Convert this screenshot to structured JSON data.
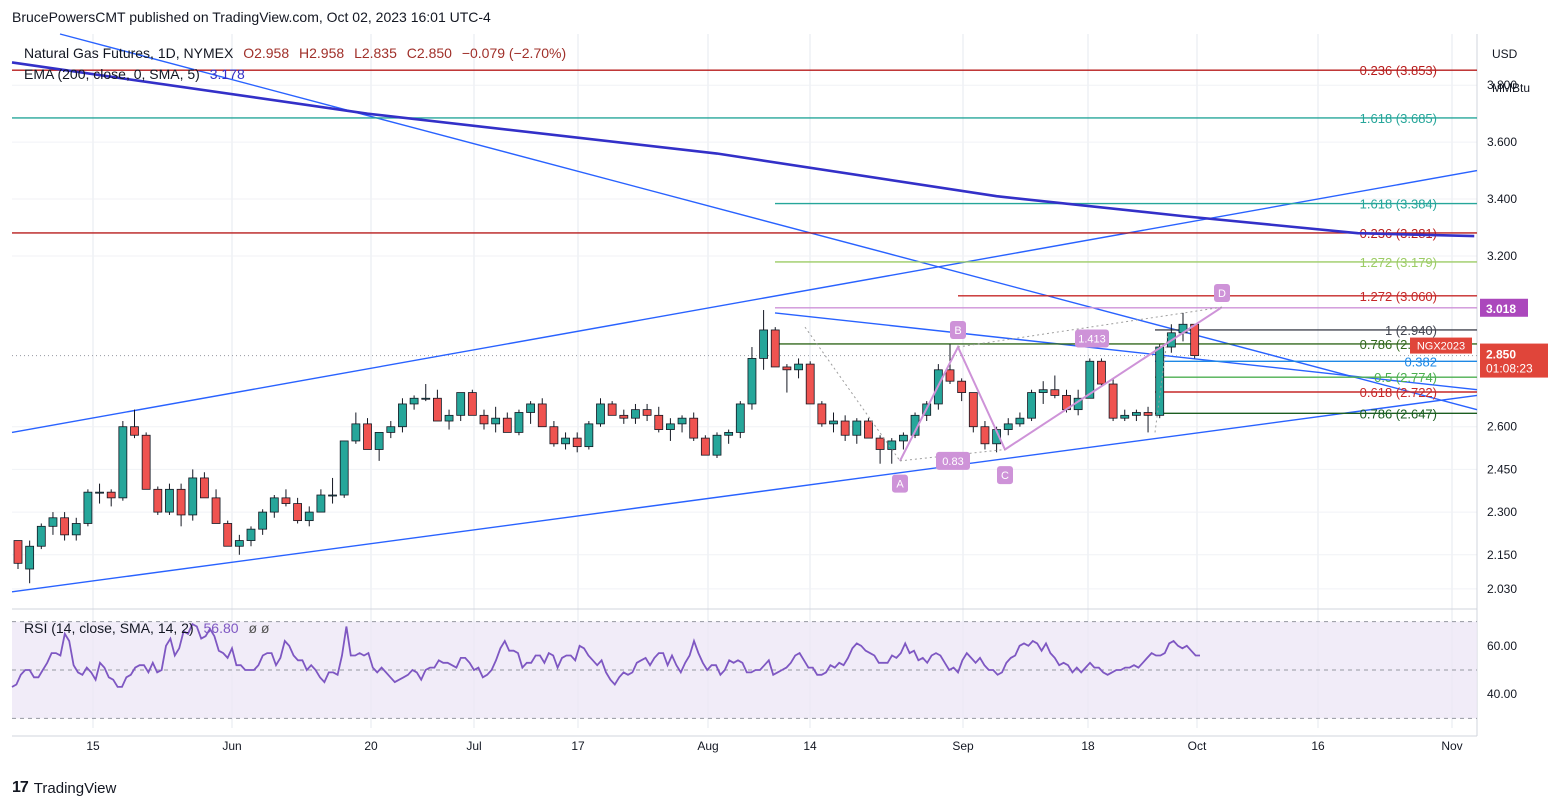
{
  "header": {
    "published_line": "BrucePowersCMT published on TradingView.com, Oct 02, 2023 16:01 UTC-4"
  },
  "legend": {
    "symbol": "Natural Gas Futures, 1D, NYMEX",
    "o": "O2.958",
    "h": "H2.958",
    "l": "L2.835",
    "c": "C2.850",
    "chg": "−0.079 (−2.70%)",
    "ema": "EMA (200, close, 0, SMA, 5)",
    "ema_value": "3.178"
  },
  "axis": {
    "currency": "USD",
    "unit": "MMBtu",
    "price_ticks": [
      "3.800",
      "3.600",
      "3.400",
      "3.200",
      "2.600",
      "2.450",
      "2.300",
      "2.150",
      "2.030"
    ],
    "rsi_ticks": [
      "60.00",
      "40.00"
    ],
    "dates": [
      "15",
      "Jun",
      "20",
      "Jul",
      "17",
      "Aug",
      "14",
      "Sep",
      "18",
      "Oct",
      "16",
      "Nov"
    ]
  },
  "price_labels": {
    "last_price": "2.850",
    "countdown": "01:08:23",
    "marker": "3.018",
    "symbol_tag": "NGX2023"
  },
  "fib_labels": [
    "0.236 (3.853)",
    "1.618 (3.685)",
    "1.618 (3.384)",
    "0.236 (3.281)",
    "1.272 (3.179)",
    "1.272 (3.060)",
    "1 (2.940)",
    "0.786 (2.891)",
    "0.382",
    "0.5 (2.774)",
    "0.618 (2.722)",
    "0.786 (2.647)"
  ],
  "pattern": {
    "points": [
      "A",
      "B",
      "C",
      "D"
    ],
    "ratios": [
      "0.83",
      "1.413"
    ]
  },
  "rsi": {
    "title": "RSI (14, close, SMA, 14, 2)",
    "value": "56.80",
    "extra": "ø  ø"
  },
  "footer": {
    "logo": "17",
    "brand": "TradingView"
  },
  "colors": {
    "up": "#26a69a",
    "down": "#ef5350",
    "ema": "#3330c8",
    "trend": "#2962ff",
    "rsi": "#7e57c2",
    "pattern": "#ce93d8",
    "last_price_bg": "#e0453a",
    "marker_bg": "#ab47bc"
  },
  "chart_data": {
    "type": "candlestick",
    "ylim": [
      1.97,
      3.98
    ],
    "rsi_ylim": [
      26,
      74
    ],
    "x_ticks": [
      "15",
      "Jun",
      "20",
      "Jul",
      "17",
      "Aug",
      "14",
      "Sep",
      "18",
      "Oct",
      "16",
      "Nov"
    ],
    "ohlc": [
      [
        2.2,
        2.2,
        2.1,
        2.12
      ],
      [
        2.1,
        2.2,
        2.05,
        2.18
      ],
      [
        2.18,
        2.26,
        2.17,
        2.25
      ],
      [
        2.25,
        2.3,
        2.22,
        2.28
      ],
      [
        2.28,
        2.3,
        2.2,
        2.22
      ],
      [
        2.22,
        2.28,
        2.2,
        2.26
      ],
      [
        2.26,
        2.38,
        2.25,
        2.37
      ],
      [
        2.37,
        2.4,
        2.33,
        2.37
      ],
      [
        2.37,
        2.38,
        2.32,
        2.35
      ],
      [
        2.35,
        2.62,
        2.34,
        2.6
      ],
      [
        2.6,
        2.66,
        2.56,
        2.57
      ],
      [
        2.57,
        2.58,
        2.38,
        2.38
      ],
      [
        2.38,
        2.39,
        2.29,
        2.3
      ],
      [
        2.3,
        2.4,
        2.29,
        2.38
      ],
      [
        2.38,
        2.4,
        2.25,
        2.29
      ],
      [
        2.29,
        2.45,
        2.27,
        2.42
      ],
      [
        2.42,
        2.44,
        2.36,
        2.35
      ],
      [
        2.35,
        2.38,
        2.28,
        2.26
      ],
      [
        2.26,
        2.27,
        2.18,
        2.18
      ],
      [
        2.18,
        2.22,
        2.15,
        2.2
      ],
      [
        2.2,
        2.25,
        2.18,
        2.24
      ],
      [
        2.24,
        2.31,
        2.22,
        2.3
      ],
      [
        2.3,
        2.36,
        2.28,
        2.35
      ],
      [
        2.35,
        2.38,
        2.32,
        2.33
      ],
      [
        2.33,
        2.35,
        2.26,
        2.27
      ],
      [
        2.27,
        2.32,
        2.25,
        2.3
      ],
      [
        2.3,
        2.38,
        2.3,
        2.36
      ],
      [
        2.36,
        2.42,
        2.33,
        2.36
      ],
      [
        2.36,
        2.55,
        2.35,
        2.55
      ],
      [
        2.55,
        2.65,
        2.54,
        2.61
      ],
      [
        2.61,
        2.63,
        2.52,
        2.52
      ],
      [
        2.52,
        2.58,
        2.48,
        2.58
      ],
      [
        2.58,
        2.62,
        2.56,
        2.6
      ],
      [
        2.6,
        2.7,
        2.58,
        2.68
      ],
      [
        2.68,
        2.71,
        2.66,
        2.7
      ],
      [
        2.7,
        2.75,
        2.69,
        2.7
      ],
      [
        2.7,
        2.73,
        2.62,
        2.62
      ],
      [
        2.62,
        2.66,
        2.59,
        2.64
      ],
      [
        2.64,
        2.72,
        2.62,
        2.72
      ],
      [
        2.72,
        2.73,
        2.64,
        2.64
      ],
      [
        2.64,
        2.66,
        2.59,
        2.61
      ],
      [
        2.61,
        2.67,
        2.58,
        2.63
      ],
      [
        2.63,
        2.65,
        2.58,
        2.58
      ],
      [
        2.58,
        2.66,
        2.57,
        2.65
      ],
      [
        2.65,
        2.69,
        2.61,
        2.68
      ],
      [
        2.68,
        2.7,
        2.6,
        2.6
      ],
      [
        2.6,
        2.62,
        2.53,
        2.54
      ],
      [
        2.54,
        2.58,
        2.52,
        2.56
      ],
      [
        2.56,
        2.58,
        2.51,
        2.53
      ],
      [
        2.53,
        2.62,
        2.52,
        2.61
      ],
      [
        2.61,
        2.7,
        2.6,
        2.68
      ],
      [
        2.68,
        2.69,
        2.64,
        2.64
      ],
      [
        2.64,
        2.66,
        2.61,
        2.63
      ],
      [
        2.63,
        2.68,
        2.61,
        2.66
      ],
      [
        2.66,
        2.68,
        2.62,
        2.64
      ],
      [
        2.64,
        2.67,
        2.58,
        2.59
      ],
      [
        2.59,
        2.63,
        2.55,
        2.61
      ],
      [
        2.61,
        2.64,
        2.58,
        2.63
      ],
      [
        2.63,
        2.65,
        2.55,
        2.56
      ],
      [
        2.56,
        2.57,
        2.5,
        2.5
      ],
      [
        2.5,
        2.58,
        2.49,
        2.57
      ],
      [
        2.57,
        2.59,
        2.54,
        2.58
      ],
      [
        2.58,
        2.69,
        2.56,
        2.68
      ],
      [
        2.68,
        2.88,
        2.66,
        2.84
      ],
      [
        2.84,
        3.01,
        2.8,
        2.94
      ],
      [
        2.94,
        2.95,
        2.81,
        2.81
      ],
      [
        2.81,
        2.82,
        2.72,
        2.8
      ],
      [
        2.8,
        2.84,
        2.77,
        2.82
      ],
      [
        2.82,
        2.83,
        2.68,
        2.68
      ],
      [
        2.68,
        2.69,
        2.6,
        2.61
      ],
      [
        2.61,
        2.65,
        2.58,
        2.62
      ],
      [
        2.62,
        2.64,
        2.55,
        2.57
      ],
      [
        2.57,
        2.63,
        2.54,
        2.62
      ],
      [
        2.62,
        2.63,
        2.56,
        2.56
      ],
      [
        2.56,
        2.57,
        2.47,
        2.52
      ],
      [
        2.52,
        2.56,
        2.47,
        2.55
      ],
      [
        2.55,
        2.58,
        2.52,
        2.57
      ],
      [
        2.57,
        2.65,
        2.56,
        2.64
      ],
      [
        2.64,
        2.69,
        2.62,
        2.68
      ],
      [
        2.68,
        2.82,
        2.66,
        2.8
      ],
      [
        2.8,
        2.89,
        2.75,
        2.76
      ],
      [
        2.76,
        2.77,
        2.69,
        2.72
      ],
      [
        2.72,
        2.72,
        2.58,
        2.6
      ],
      [
        2.6,
        2.62,
        2.52,
        2.54
      ],
      [
        2.54,
        2.6,
        2.51,
        2.59
      ],
      [
        2.59,
        2.63,
        2.57,
        2.61
      ],
      [
        2.61,
        2.65,
        2.6,
        2.63
      ],
      [
        2.63,
        2.73,
        2.62,
        2.72
      ],
      [
        2.72,
        2.76,
        2.68,
        2.73
      ],
      [
        2.73,
        2.78,
        2.7,
        2.71
      ],
      [
        2.71,
        2.73,
        2.65,
        2.66
      ],
      [
        2.66,
        2.73,
        2.64,
        2.7
      ],
      [
        2.7,
        2.84,
        2.7,
        2.83
      ],
      [
        2.83,
        2.84,
        2.74,
        2.75
      ],
      [
        2.75,
        2.77,
        2.62,
        2.63
      ],
      [
        2.63,
        2.66,
        2.62,
        2.64
      ],
      [
        2.64,
        2.66,
        2.62,
        2.65
      ],
      [
        2.65,
        2.67,
        2.58,
        2.64
      ],
      [
        2.64,
        2.89,
        2.63,
        2.88
      ],
      [
        2.88,
        2.96,
        2.86,
        2.93
      ],
      [
        2.93,
        3.0,
        2.9,
        2.96
      ],
      [
        2.96,
        2.96,
        2.84,
        2.85
      ]
    ],
    "ema200": [
      [
        0,
        3.88
      ],
      [
        30,
        3.7
      ],
      [
        60,
        3.56
      ],
      [
        84,
        3.41
      ],
      [
        100,
        3.34
      ],
      [
        115,
        3.28
      ],
      [
        125,
        3.27
      ]
    ],
    "rsi": [
      43,
      44,
      48,
      50,
      50,
      47,
      47,
      50,
      53,
      57,
      57,
      56,
      65,
      62,
      52,
      49,
      48,
      51,
      49,
      46,
      53,
      51,
      47,
      46,
      43,
      43,
      47,
      48,
      51,
      52,
      52,
      49,
      53,
      49,
      50,
      60,
      63,
      56,
      59,
      66,
      65,
      69,
      68,
      63,
      64,
      67,
      64,
      58,
      57,
      55,
      59,
      52,
      52,
      50,
      50,
      50,
      52,
      56,
      57,
      57,
      52,
      55,
      62,
      60,
      56,
      54,
      54,
      50,
      52,
      50,
      47,
      45,
      49,
      49,
      48,
      56,
      68,
      56,
      56,
      57,
      56,
      57,
      51,
      49,
      51,
      49,
      47,
      45,
      46,
      47,
      48,
      50,
      49,
      46,
      50,
      51,
      51,
      54,
      53,
      53,
      52,
      51,
      55,
      55,
      53,
      50,
      51,
      47,
      48,
      50,
      54,
      59,
      62,
      58,
      58,
      57,
      51,
      53,
      53,
      56,
      56,
      53,
      57,
      56,
      51,
      55,
      56,
      56,
      54,
      60,
      59,
      56,
      54,
      52,
      54,
      49,
      46,
      44,
      47,
      49,
      48,
      49,
      53,
      54,
      55,
      52,
      55,
      57,
      57,
      52,
      56,
      52,
      49,
      53,
      56,
      62,
      57,
      53,
      50,
      52,
      52,
      48,
      50,
      54,
      53,
      54,
      53,
      49,
      49,
      50,
      50,
      52,
      54,
      48,
      49,
      50,
      51,
      53,
      56,
      57,
      54,
      51,
      51,
      48,
      48,
      49,
      52,
      51,
      53,
      52,
      55,
      59,
      61,
      60,
      58,
      57,
      56,
      53,
      53,
      53,
      56,
      55,
      57,
      61,
      57,
      58,
      54,
      55,
      53,
      56,
      57,
      56,
      53,
      50,
      51,
      49,
      54,
      57,
      55,
      53,
      55,
      52,
      50,
      50,
      48,
      49,
      53,
      55,
      56,
      60,
      61,
      60,
      62,
      61,
      58,
      61,
      57,
      55,
      52,
      53,
      52,
      49,
      51,
      49,
      51,
      53,
      51,
      51,
      49,
      48,
      49,
      50,
      50,
      51,
      51,
      52,
      51,
      53,
      55,
      57,
      56,
      56,
      57,
      61,
      62,
      60,
      59,
      60,
      58,
      56,
      56
    ]
  }
}
